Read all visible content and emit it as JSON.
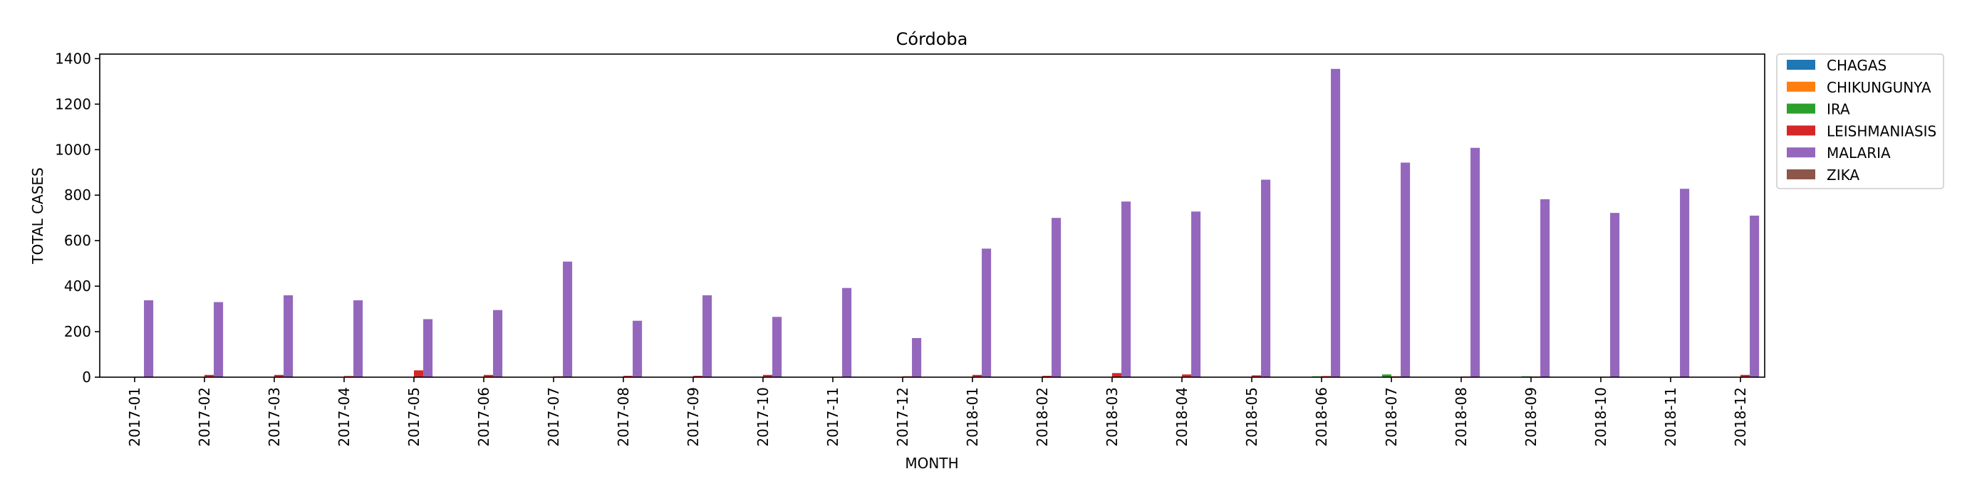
{
  "chart_data": {
    "type": "bar",
    "title": "Córdoba",
    "xlabel": "MONTH",
    "ylabel": "TOTAL CASES",
    "ylim": [
      0,
      1420
    ],
    "yticks": [
      0,
      200,
      400,
      600,
      800,
      1000,
      1200,
      1400
    ],
    "grid": false,
    "legend_position": "outside-top-right",
    "categories": [
      "2017-01",
      "2017-02",
      "2017-03",
      "2017-04",
      "2017-05",
      "2017-06",
      "2017-07",
      "2017-08",
      "2017-09",
      "2017-10",
      "2017-11",
      "2017-12",
      "2018-01",
      "2018-02",
      "2018-03",
      "2018-04",
      "2018-05",
      "2018-06",
      "2018-07",
      "2018-08",
      "2018-09",
      "2018-10",
      "2018-11",
      "2018-12"
    ],
    "series": [
      {
        "name": "CHAGAS",
        "color": "#1f77b4",
        "values": [
          0,
          0,
          0,
          0,
          0,
          0,
          0,
          0,
          0,
          0,
          0,
          0,
          0,
          0,
          0,
          0,
          0,
          0,
          0,
          0,
          0,
          0,
          0,
          0
        ]
      },
      {
        "name": "CHIKUNGUNYA",
        "color": "#ff7f0e",
        "values": [
          0,
          0,
          0,
          0,
          0,
          0,
          0,
          0,
          0,
          0,
          0,
          0,
          0,
          0,
          0,
          0,
          0,
          0,
          0,
          0,
          0,
          0,
          0,
          0
        ]
      },
      {
        "name": "IRA",
        "color": "#2ca02c",
        "values": [
          0,
          1,
          0,
          0,
          0,
          0,
          0,
          0,
          0,
          0,
          0,
          0,
          0,
          0,
          0,
          0,
          0,
          4,
          12,
          0,
          4,
          0,
          0,
          0
        ]
      },
      {
        "name": "LEISHMANIASIS",
        "color": "#d62728",
        "values": [
          2,
          10,
          10,
          5,
          30,
          10,
          4,
          6,
          6,
          10,
          2,
          4,
          10,
          6,
          18,
          12,
          8,
          5,
          4,
          3,
          3,
          2,
          2,
          10
        ]
      },
      {
        "name": "MALARIA",
        "color": "#9467bd",
        "values": [
          338,
          330,
          360,
          338,
          255,
          295,
          508,
          248,
          360,
          265,
          392,
          172,
          565,
          700,
          772,
          728,
          868,
          1355,
          943,
          1008,
          782,
          722,
          828,
          710
        ]
      },
      {
        "name": "ZIKA",
        "color": "#8c564b",
        "values": [
          0,
          0,
          0,
          0,
          0,
          0,
          0,
          0,
          0,
          0,
          0,
          0,
          0,
          0,
          0,
          0,
          0,
          0,
          0,
          0,
          0,
          0,
          0,
          0
        ]
      }
    ]
  }
}
